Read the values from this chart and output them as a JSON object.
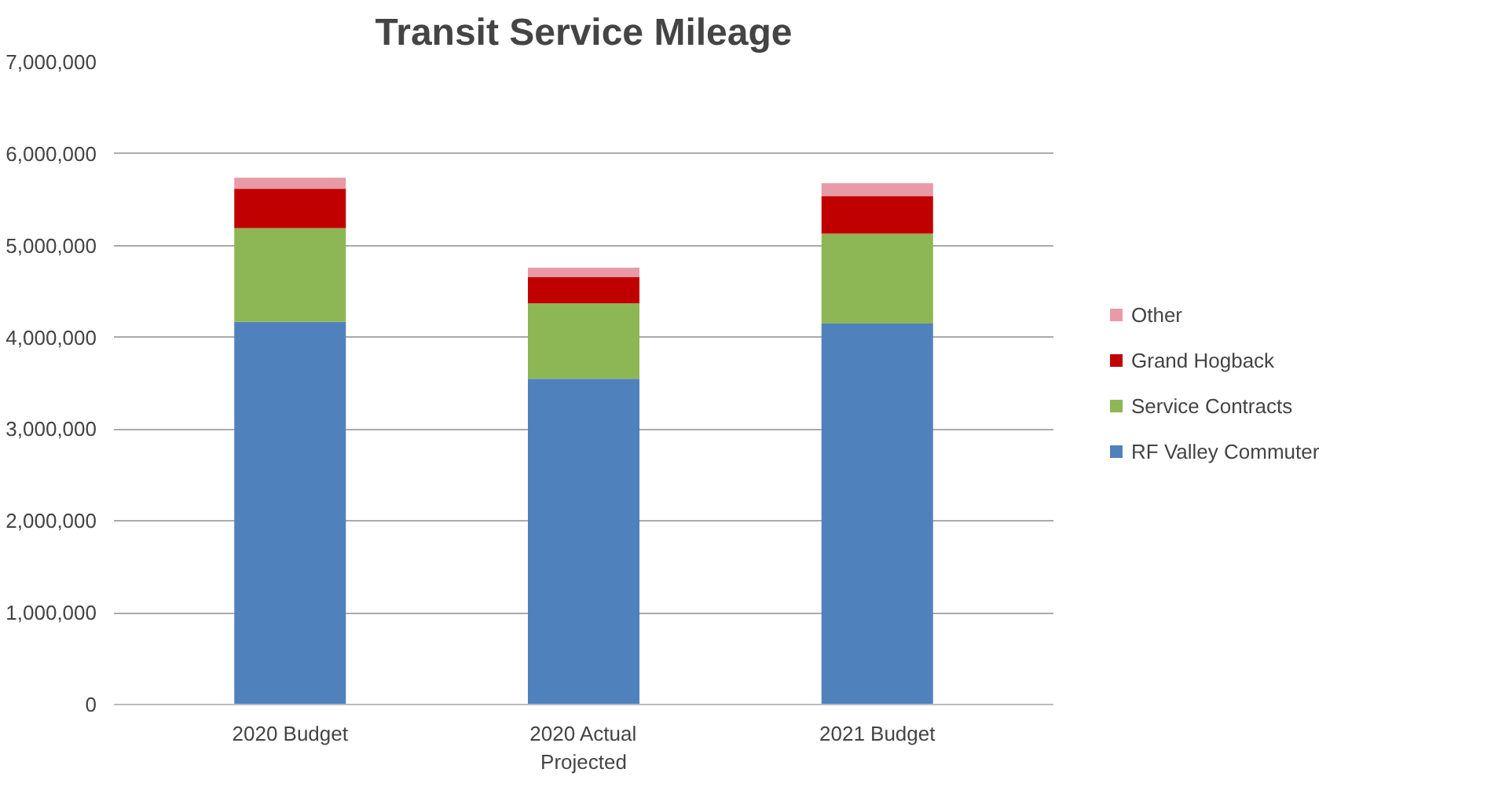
{
  "chart_data": {
    "type": "bar",
    "title": "Transit Service Mileage",
    "stacked": true,
    "categories": [
      "2020 Budget",
      "2020 Actual\nProjected",
      "2021 Budget"
    ],
    "series": [
      {
        "name": "RF Valley Commuter",
        "color": "#4f81bd",
        "values": [
          4170000,
          3550000,
          4150000
        ]
      },
      {
        "name": "Service Contracts",
        "color": "#8db654",
        "values": [
          1020000,
          820000,
          980000
        ]
      },
      {
        "name": "Grand Hogback",
        "color": "#c00000",
        "values": [
          430000,
          290000,
          410000
        ]
      },
      {
        "name": "Other",
        "color": "#e89aa6",
        "values": [
          120000,
          100000,
          140000
        ]
      }
    ],
    "ylim": [
      0,
      7000000
    ],
    "yticks": [
      {
        "value": 0,
        "label": "0"
      },
      {
        "value": 1000000,
        "label": "1,000,000"
      },
      {
        "value": 2000000,
        "label": "2,000,000"
      },
      {
        "value": 3000000,
        "label": "3,000,000"
      },
      {
        "value": 4000000,
        "label": "4,000,000"
      },
      {
        "value": 5000000,
        "label": "5,000,000"
      },
      {
        "value": 6000000,
        "label": "6,000,000"
      },
      {
        "value": 7000000,
        "label": "7,000,000"
      }
    ],
    "grid": "y",
    "legend": "right"
  }
}
